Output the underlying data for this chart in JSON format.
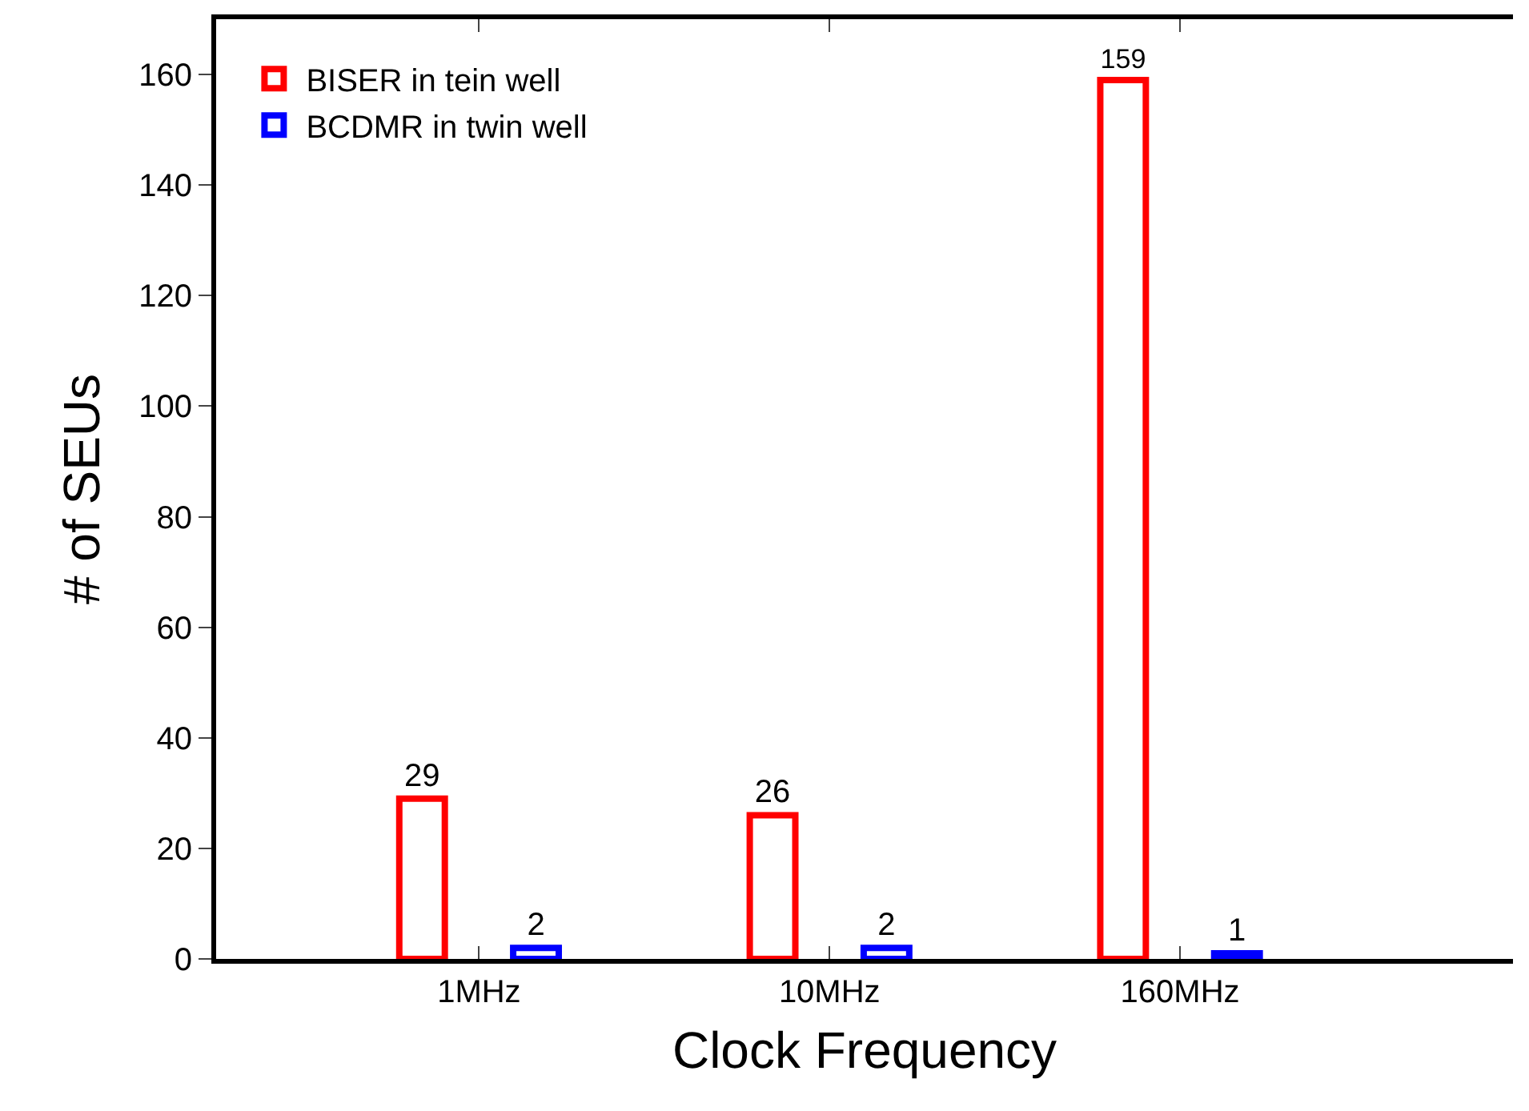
{
  "chart_data": {
    "type": "bar",
    "xlabel": "Clock Frequency",
    "ylabel": "# of SEUs",
    "categories": [
      "1MHz",
      "10MHz",
      "160MHz"
    ],
    "series": [
      {
        "name": "BISER in tein well",
        "color": "#ff0000",
        "values": [
          29,
          26,
          159
        ]
      },
      {
        "name": "BCDMR in twin well",
        "color": "#0000ff",
        "values": [
          2,
          2,
          1
        ]
      }
    ],
    "ylim": [
      0,
      170
    ],
    "yticks": [
      0,
      20,
      40,
      60,
      80,
      100,
      120,
      140,
      160
    ],
    "data_labels": true,
    "legend": "top left"
  }
}
